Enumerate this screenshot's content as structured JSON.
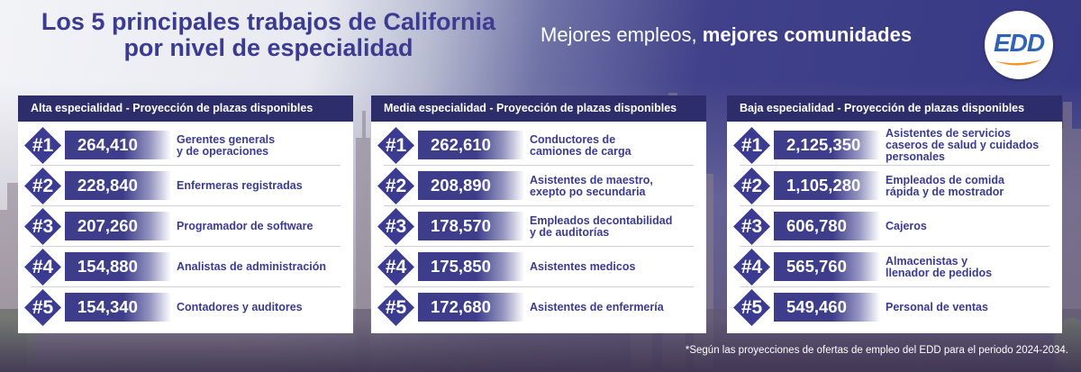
{
  "header": {
    "title_line1": "Los 5 principales trabajos de California",
    "title_line2": "por nivel de especialidad",
    "slogan_regular": "Mejores empleos,",
    "slogan_bold": "mejores comunidades",
    "logo_text": "EDD"
  },
  "colors": {
    "navy": "#2d2d6b",
    "purple": "#3b3b91",
    "logo_blue": "#2e63b6",
    "logo_orange": "#f29422"
  },
  "panels": [
    {
      "title": "Alta especialidad - Proyección de plazas disponibles",
      "rows": [
        {
          "rank": "#1",
          "value": "264,410",
          "job_line1": "Gerentes generals",
          "job_line2": "y de operaciones"
        },
        {
          "rank": "#2",
          "value": "228,840",
          "job_line1": "Enfermeras registradas",
          "job_line2": ""
        },
        {
          "rank": "#3",
          "value": "207,260",
          "job_line1": "Programador de software",
          "job_line2": ""
        },
        {
          "rank": "#4",
          "value": "154,880",
          "job_line1": "Analistas de administración",
          "job_line2": ""
        },
        {
          "rank": "#5",
          "value": "154,340",
          "job_line1": "Contadores y auditores",
          "job_line2": ""
        }
      ]
    },
    {
      "title": "Media especialidad - Proyección de plazas disponibles",
      "rows": [
        {
          "rank": "#1",
          "value": "262,610",
          "job_line1": "Conductores de",
          "job_line2": "camiones de carga"
        },
        {
          "rank": "#2",
          "value": "208,890",
          "job_line1": "Asistentes de maestro,",
          "job_line2": "exepto po secundaria"
        },
        {
          "rank": "#3",
          "value": "178,570",
          "job_line1": "Empleados decontabilidad",
          "job_line2": "y de auditorías"
        },
        {
          "rank": "#4",
          "value": "175,850",
          "job_line1": "Asistentes medicos",
          "job_line2": ""
        },
        {
          "rank": "#5",
          "value": "172,680",
          "job_line1": "Asistentes de enfermería",
          "job_line2": ""
        }
      ]
    },
    {
      "title": "Baja especialidad - Proyección de plazas disponibles",
      "rows": [
        {
          "rank": "#1",
          "value": "2,125,350",
          "job_line1": "Asistentes de servicios",
          "job_line2": "caseros de salud y cuidados",
          "job_line3": "personales"
        },
        {
          "rank": "#2",
          "value": "1,105,280",
          "job_line1": "Empleados de comida",
          "job_line2": "rápida y de mostrador"
        },
        {
          "rank": "#3",
          "value": "606,780",
          "job_line1": "Cajeros",
          "job_line2": ""
        },
        {
          "rank": "#4",
          "value": "565,760",
          "job_line1": "Almacenistas y",
          "job_line2": "llenador de pedidos"
        },
        {
          "rank": "#5",
          "value": "549,460",
          "job_line1": "Personal de ventas",
          "job_line2": ""
        }
      ]
    }
  ],
  "footnote": "*Según las proyecciones de ofertas de empleo del EDD para el periodo 2024-2034."
}
